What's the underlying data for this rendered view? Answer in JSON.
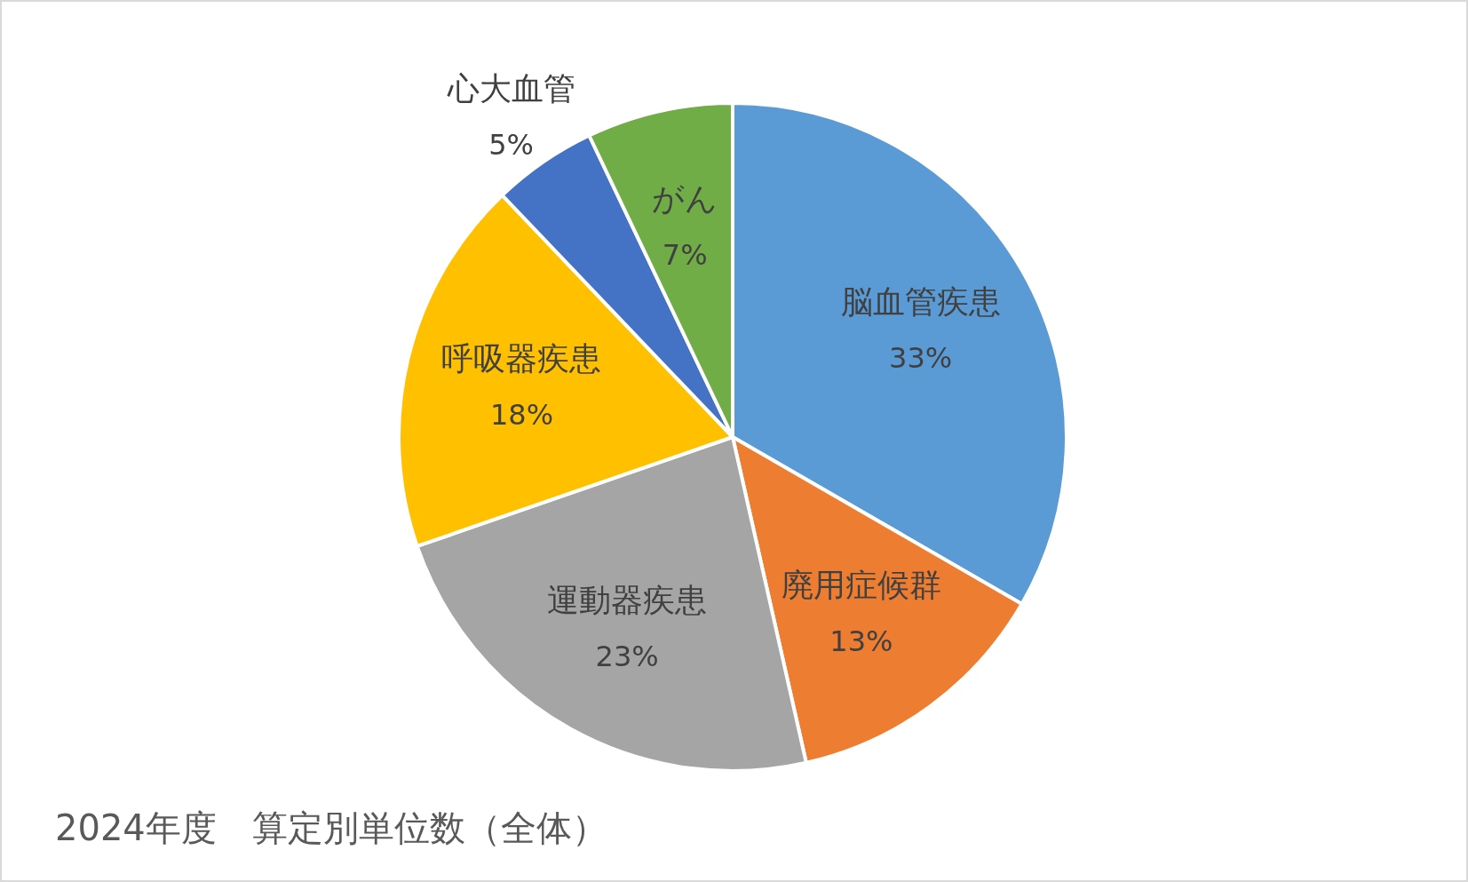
{
  "chart_data": {
    "type": "pie",
    "title": "2024年度　算定別単位数（全体）",
    "categories": [
      "脳血管疾患",
      "廃用症候群",
      "運動器疾患",
      "呼吸器疾患",
      "心大血管",
      "がん"
    ],
    "values": [
      33,
      13,
      23,
      18,
      5,
      7
    ],
    "colors": [
      "#5b9bd5",
      "#ed7d31",
      "#a5a5a5",
      "#ffc000",
      "#4472c4",
      "#70ad47"
    ],
    "value_labels": [
      "33%",
      "13%",
      "23%",
      "18%",
      "5%",
      "7%"
    ]
  }
}
